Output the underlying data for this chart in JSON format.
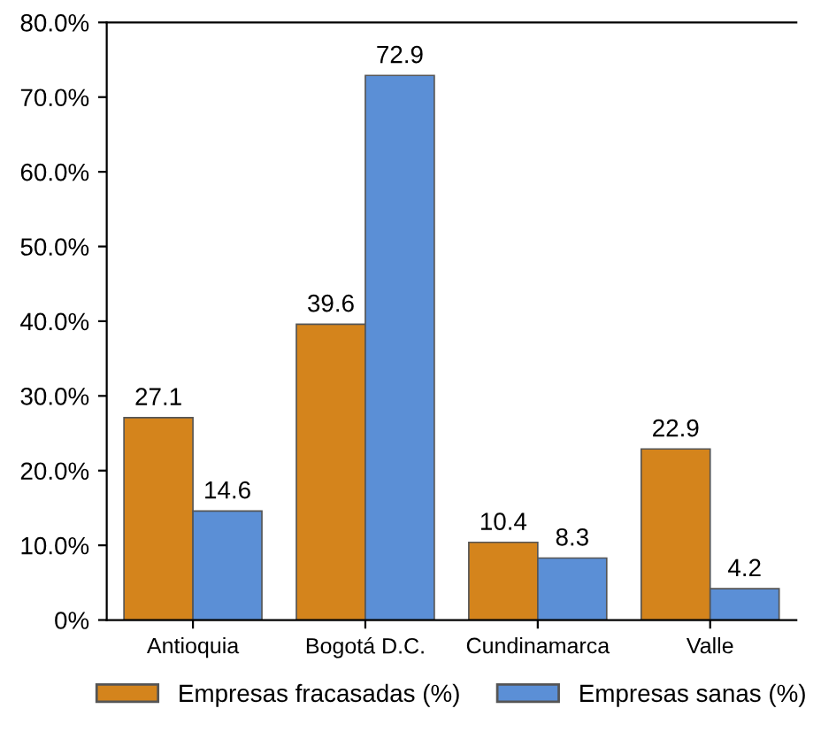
{
  "chart_data": {
    "type": "bar",
    "categories": [
      "Antioquia",
      "Bogotá D.C.",
      "Cundinamarca",
      "Valle"
    ],
    "series": [
      {
        "name": "Empresas fracasadas (%)",
        "color": "#d4841c",
        "values": [
          27.1,
          39.6,
          10.4,
          22.9
        ]
      },
      {
        "name": "Empresas sanas (%)",
        "color": "#5b8fd6",
        "values": [
          14.6,
          72.9,
          8.3,
          4.2
        ]
      }
    ],
    "ylim": [
      0,
      80
    ],
    "yticks": [
      {
        "value": 0,
        "label": "0%"
      },
      {
        "value": 10,
        "label": "10.0%"
      },
      {
        "value": 20,
        "label": "20.0%"
      },
      {
        "value": 30,
        "label": "30.0%"
      },
      {
        "value": 40,
        "label": "40.0%"
      },
      {
        "value": 50,
        "label": "50.0%"
      },
      {
        "value": 60,
        "label": "60.0%"
      },
      {
        "value": 70,
        "label": "70.0%"
      },
      {
        "value": 80,
        "label": "80.0%"
      }
    ],
    "data_labels": true,
    "grid": false,
    "legend": "bottom"
  }
}
